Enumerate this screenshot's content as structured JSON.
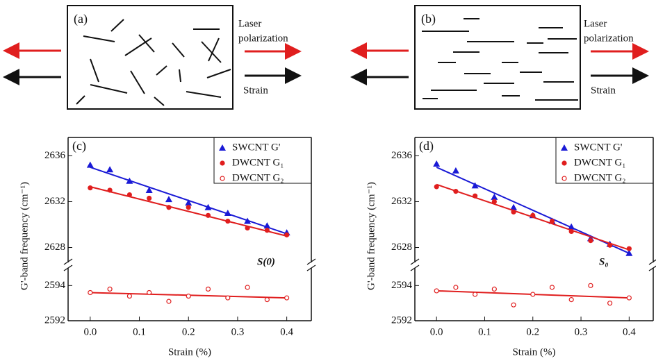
{
  "diagrams": [
    {
      "label": "(a)",
      "laser_lines": [
        "Laser",
        "polarization"
      ],
      "strain": "Strain"
    },
    {
      "label": "(b)",
      "laser_lines": [
        "Laser",
        "polarization"
      ],
      "strain": "Strain"
    }
  ],
  "chart_data": [
    {
      "type": "scatter",
      "panel_label": "(c)",
      "annotation": "S(0)",
      "xlabel": "Strain (%)",
      "ylabel": "G'-band frequency (cm⁻¹)",
      "xlim": [
        -0.045,
        0.45
      ],
      "xticks": [
        {
          "value": 0,
          "label": "0.0"
        },
        0.1,
        0.2,
        0.3,
        0.4
      ],
      "y_segments": [
        {
          "ylim": [
            2592,
            2595
          ],
          "yticks": [
            2592,
            2594
          ]
        },
        {
          "ylim": [
            2626.7,
            2637.6
          ],
          "yticks": [
            2628,
            2632,
            2636
          ]
        }
      ],
      "x": [
        0,
        0.04,
        0.08,
        0.12,
        0.16,
        0.2,
        0.24,
        0.28,
        0.32,
        0.36,
        0.4
      ],
      "fit_x": [
        0,
        0.4
      ],
      "series": [
        {
          "name": "SWCNT G'",
          "color": "#1a1ad6",
          "marker": "triangle",
          "values": [
            2635.2,
            2634.8,
            2633.8,
            2633.0,
            2632.2,
            2631.9,
            2631.5,
            2631.0,
            2630.3,
            2629.9,
            2629.3
          ],
          "fit": [
            2635.0,
            2629.2
          ]
        },
        {
          "name": "DWCNT G₁",
          "color": "#e01e1e",
          "marker": "circle",
          "values": [
            2633.2,
            2633.0,
            2632.6,
            2632.3,
            2631.5,
            2631.5,
            2630.8,
            2630.3,
            2629.7,
            2629.5,
            2629.1
          ],
          "fit": [
            2633.3,
            2629.0
          ]
        },
        {
          "name": "DWCNT G₂",
          "color": "#e01e1e",
          "marker": "open-circle",
          "values": [
            2593.6,
            2593.8,
            2593.4,
            2593.6,
            2593.1,
            2593.4,
            2593.8,
            2593.3,
            2593.9,
            2593.2,
            2593.3
          ],
          "fit": [
            2593.6,
            2593.3
          ]
        }
      ]
    },
    {
      "type": "scatter",
      "panel_label": "(d)",
      "annotation": "S₀",
      "xlabel": "Strain (%)",
      "ylabel": "G'-band frequency (cm⁻¹)",
      "xlim": [
        -0.045,
        0.45
      ],
      "xticks": [
        {
          "value": 0,
          "label": "0.0"
        },
        0.1,
        0.2,
        0.3,
        0.4
      ],
      "y_segments": [
        {
          "ylim": [
            2592,
            2595
          ],
          "yticks": [
            2592,
            2594
          ]
        },
        {
          "ylim": [
            2626.7,
            2637.6
          ],
          "yticks": [
            2628,
            2632,
            2636
          ]
        }
      ],
      "x": [
        0,
        0.04,
        0.08,
        0.12,
        0.16,
        0.2,
        0.24,
        0.28,
        0.32,
        0.36,
        0.4
      ],
      "fit_x": [
        0,
        0.4
      ],
      "series": [
        {
          "name": "SWCNT G'",
          "color": "#1a1ad6",
          "marker": "triangle",
          "values": [
            2635.3,
            2634.7,
            2633.4,
            2632.4,
            2631.5,
            2630.8,
            2630.3,
            2629.8,
            2628.8,
            2628.3,
            2627.5
          ],
          "fit": [
            2635.0,
            2627.5
          ]
        },
        {
          "name": "DWCNT G₁",
          "color": "#e01e1e",
          "marker": "circle",
          "values": [
            2633.3,
            2632.9,
            2632.5,
            2632.0,
            2631.1,
            2630.8,
            2630.3,
            2629.4,
            2628.6,
            2628.2,
            2627.9
          ],
          "fit": [
            2633.5,
            2627.8
          ]
        },
        {
          "name": "DWCNT G₂",
          "color": "#e01e1e",
          "marker": "open-circle",
          "values": [
            2593.7,
            2593.9,
            2593.5,
            2593.8,
            2592.9,
            2593.5,
            2593.9,
            2593.2,
            2594.0,
            2593.0,
            2593.3
          ],
          "fit": [
            2593.7,
            2593.3
          ]
        }
      ]
    }
  ]
}
